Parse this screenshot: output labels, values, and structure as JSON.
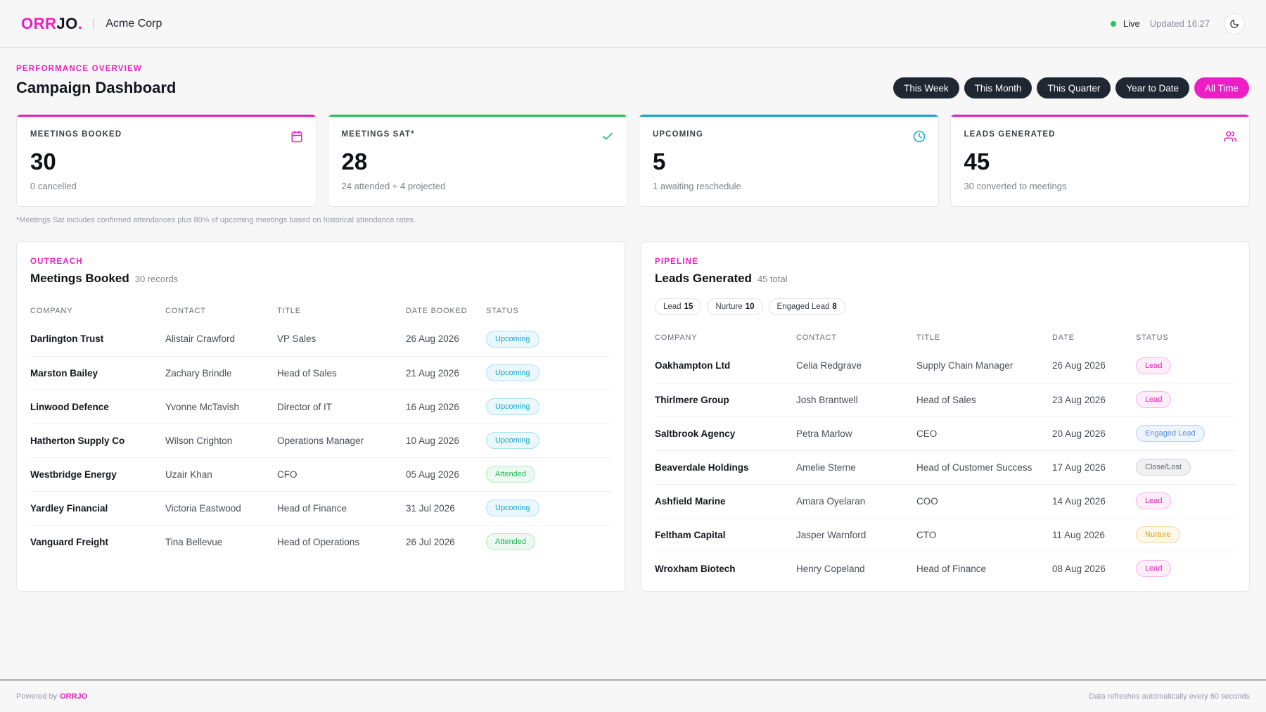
{
  "header": {
    "logo_part1": "ORR",
    "logo_part2": "JO",
    "logo_dot": ".",
    "client": "Acme Corp",
    "live": "Live",
    "updated": "Updated 16:27",
    "theme_icon": "moon-icon"
  },
  "page": {
    "eyebrow": "PERFORMANCE OVERVIEW",
    "title": "Campaign Dashboard"
  },
  "filters": [
    {
      "label": "This Week",
      "active": false
    },
    {
      "label": "This Month",
      "active": false
    },
    {
      "label": "This Quarter",
      "active": false
    },
    {
      "label": "Year to Date",
      "active": false
    },
    {
      "label": "All Time",
      "active": true
    }
  ],
  "kpis": [
    {
      "label": "MEETINGS BOOKED",
      "value": "30",
      "sub": "0 cancelled",
      "color": "#ec1fc6",
      "icon": "calendar-icon"
    },
    {
      "label": "MEETINGS SAT*",
      "value": "28",
      "sub": "24 attended + 4 projected",
      "color": "#22c55e",
      "icon": "check-icon"
    },
    {
      "label": "UPCOMING",
      "value": "5",
      "sub": "1 awaiting reschedule",
      "color": "#14a9d1",
      "icon": "clock-icon"
    },
    {
      "label": "LEADS GENERATED",
      "value": "45",
      "sub": "30 converted to meetings",
      "color": "#ec1fc6",
      "icon": "users-icon"
    }
  ],
  "footnote": "*Meetings Sat includes confirmed attendances plus 80% of upcoming meetings based on historical attendance rates.",
  "meetings": {
    "eyebrow": "OUTREACH",
    "title": "Meetings Booked",
    "count": "30 records",
    "columns": [
      "COMPANY",
      "CONTACT",
      "TITLE",
      "DATE BOOKED",
      "STATUS"
    ],
    "rows": [
      {
        "company": "Darlington Trust",
        "contact": "Alistair Crawford",
        "title": "VP Sales",
        "date": "26 Aug 2026",
        "status": "Upcoming"
      },
      {
        "company": "Marston Bailey",
        "contact": "Zachary Brindle",
        "title": "Head of Sales",
        "date": "21 Aug 2026",
        "status": "Upcoming"
      },
      {
        "company": "Linwood Defence",
        "contact": "Yvonne McTavish",
        "title": "Director of IT",
        "date": "16 Aug 2026",
        "status": "Upcoming"
      },
      {
        "company": "Hatherton Supply Co",
        "contact": "Wilson Crighton",
        "title": "Operations Manager",
        "date": "10 Aug 2026",
        "status": "Upcoming"
      },
      {
        "company": "Westbridge Energy",
        "contact": "Uzair Khan",
        "title": "CFO",
        "date": "05 Aug 2026",
        "status": "Attended"
      },
      {
        "company": "Yardley Financial",
        "contact": "Victoria Eastwood",
        "title": "Head of Finance",
        "date": "31 Jul 2026",
        "status": "Upcoming"
      },
      {
        "company": "Vanguard Freight",
        "contact": "Tina Bellevue",
        "title": "Head of Operations",
        "date": "26 Jul 2026",
        "status": "Attended"
      }
    ]
  },
  "leads": {
    "eyebrow": "PIPELINE",
    "title": "Leads Generated",
    "count": "45 total",
    "chips": [
      {
        "label": "Lead",
        "count": "15"
      },
      {
        "label": "Nurture",
        "count": "10"
      },
      {
        "label": "Engaged Lead",
        "count": "8"
      }
    ],
    "columns": [
      "COMPANY",
      "CONTACT",
      "TITLE",
      "DATE",
      "STATUS"
    ],
    "rows": [
      {
        "company": "Oakhampton Ltd",
        "contact": "Celia Redgrave",
        "title": "Supply Chain Manager",
        "date": "26 Aug 2026",
        "status": "Lead"
      },
      {
        "company": "Thirlmere Group",
        "contact": "Josh Brantwell",
        "title": "Head of Sales",
        "date": "23 Aug 2026",
        "status": "Lead"
      },
      {
        "company": "Saltbrook Agency",
        "contact": "Petra Marlow",
        "title": "CEO",
        "date": "20 Aug 2026",
        "status": "Engaged Lead"
      },
      {
        "company": "Beaverdale Holdings",
        "contact": "Amelie Sterne",
        "title": "Head of Customer Success",
        "date": "17 Aug 2026",
        "status": "Close/Lost"
      },
      {
        "company": "Ashfield Marine",
        "contact": "Amara Oyelaran",
        "title": "COO",
        "date": "14 Aug 2026",
        "status": "Lead"
      },
      {
        "company": "Feltham Capital",
        "contact": "Jasper Warnford",
        "title": "CTO",
        "date": "11 Aug 2026",
        "status": "Nurture"
      },
      {
        "company": "Wroxham Biotech",
        "contact": "Henry Copeland",
        "title": "Head of Finance",
        "date": "08 Aug 2026",
        "status": "Lead"
      }
    ]
  },
  "footer": {
    "powered_by": "Powered by",
    "brand": "ORRJO",
    "refresh": "Data refreshes automatically every 60 seconds"
  }
}
